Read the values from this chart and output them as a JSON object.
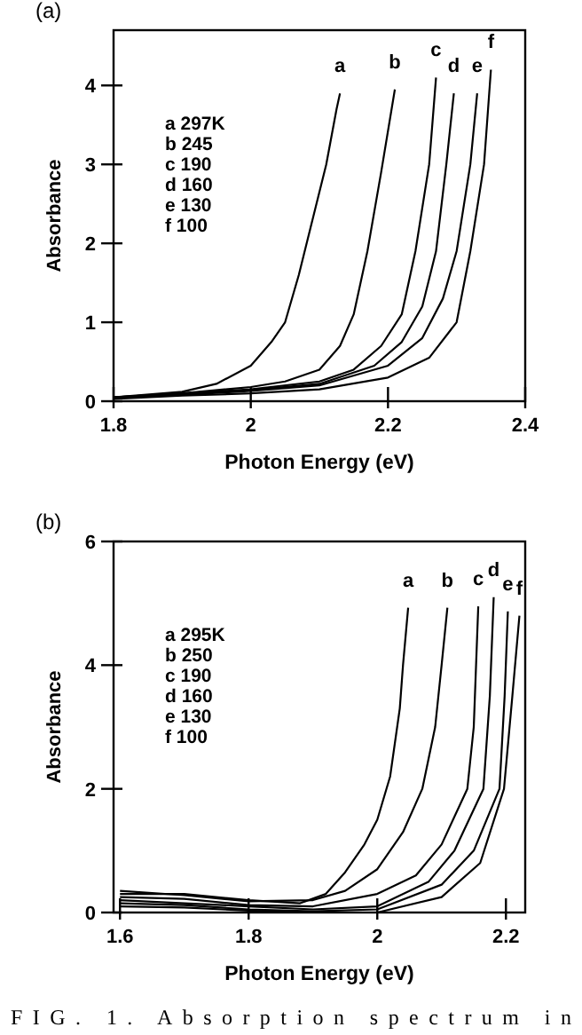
{
  "chart_data": [
    {
      "type": "line",
      "title": "(a)",
      "xlabel": "Photon Energy (eV)",
      "ylabel": "Absorbance",
      "xlim": [
        1.8,
        2.4
      ],
      "xticks": [
        {
          "value": 1.8,
          "label": "1.8"
        },
        {
          "value": 2,
          "label": "2"
        },
        {
          "value": 2.2,
          "label": "2.2"
        },
        {
          "value": 2.4,
          "label": "2.4"
        }
      ],
      "ylim": [
        0,
        4.7
      ],
      "yticks": [
        0,
        1,
        2,
        3,
        4
      ],
      "grid": false,
      "marker": "none",
      "line_style": "solid",
      "annotations": [
        "a 297K",
        "b 245",
        "c 190",
        "d 160",
        "e 130",
        "f 100"
      ],
      "series": [
        {
          "name": "a",
          "color": "#000000",
          "x": [
            1.8,
            1.9,
            1.95,
            2.0,
            2.03,
            2.05,
            2.07,
            2.09,
            2.11,
            2.125,
            2.13
          ],
          "values": [
            0.05,
            0.12,
            0.22,
            0.45,
            0.75,
            1.0,
            1.6,
            2.3,
            3.0,
            3.7,
            3.9
          ]
        },
        {
          "name": "b",
          "color": "#000000",
          "x": [
            1.8,
            1.9,
            2.0,
            2.05,
            2.1,
            2.13,
            2.15,
            2.17,
            2.19,
            2.21
          ],
          "values": [
            0.05,
            0.1,
            0.18,
            0.25,
            0.4,
            0.7,
            1.1,
            1.9,
            2.9,
            3.95
          ]
        },
        {
          "name": "c",
          "color": "#000000",
          "x": [
            1.8,
            1.9,
            2.0,
            2.1,
            2.15,
            2.19,
            2.22,
            2.24,
            2.26,
            2.27
          ],
          "values": [
            0.05,
            0.1,
            0.15,
            0.25,
            0.4,
            0.7,
            1.1,
            1.9,
            3.0,
            4.1
          ]
        },
        {
          "name": "d",
          "color": "#000000",
          "x": [
            1.8,
            1.9,
            2.0,
            2.1,
            2.18,
            2.22,
            2.25,
            2.27,
            2.285,
            2.296
          ],
          "values": [
            0.04,
            0.09,
            0.14,
            0.22,
            0.45,
            0.75,
            1.2,
            1.9,
            3.0,
            3.9
          ]
        },
        {
          "name": "e",
          "color": "#000000",
          "x": [
            1.8,
            1.9,
            2.0,
            2.1,
            2.2,
            2.25,
            2.28,
            2.3,
            2.32,
            2.33
          ],
          "values": [
            0.04,
            0.08,
            0.13,
            0.2,
            0.45,
            0.8,
            1.3,
            1.9,
            3.0,
            3.9
          ]
        },
        {
          "name": "f",
          "color": "#000000",
          "x": [
            1.8,
            1.9,
            2.0,
            2.1,
            2.2,
            2.26,
            2.3,
            2.32,
            2.34,
            2.35
          ],
          "values": [
            0.03,
            0.07,
            0.1,
            0.15,
            0.3,
            0.55,
            1.0,
            1.9,
            3.0,
            4.2
          ]
        }
      ]
    },
    {
      "type": "line",
      "title": "(b)",
      "xlabel": "Photon Energy (eV)",
      "ylabel": "Absorbance",
      "xlim": [
        1.59,
        2.23
      ],
      "xticks": [
        {
          "value": 1.6,
          "label": "1.6"
        },
        {
          "value": 1.8,
          "label": "1.8"
        },
        {
          "value": 2,
          "label": "2"
        },
        {
          "value": 2.2,
          "label": "2.2"
        }
      ],
      "ylim": [
        0,
        6
      ],
      "yticks": [
        0,
        2,
        4,
        6
      ],
      "grid": false,
      "marker": "none",
      "line_style": "solid",
      "annotations": [
        "a 295K",
        "b 250",
        "c 190",
        "d 160",
        "e 130",
        "f 100",
        "FIG. 1. Absorption spectrum in"
      ],
      "series": [
        {
          "name": "a",
          "color": "#000000",
          "x": [
            1.6,
            1.7,
            1.8,
            1.88,
            1.92,
            1.95,
            1.98,
            2.0,
            2.02,
            2.035,
            2.04,
            2.048
          ],
          "values": [
            0.3,
            0.3,
            0.2,
            0.15,
            0.3,
            0.65,
            1.1,
            1.5,
            2.2,
            3.3,
            4.0,
            4.93
          ]
        },
        {
          "name": "b",
          "color": "#000000",
          "x": [
            1.6,
            1.7,
            1.8,
            1.9,
            1.95,
            2.0,
            2.04,
            2.07,
            2.09,
            2.1,
            2.109
          ],
          "values": [
            0.35,
            0.28,
            0.18,
            0.2,
            0.35,
            0.7,
            1.3,
            2.0,
            3.0,
            4.0,
            4.93
          ]
        },
        {
          "name": "c",
          "color": "#000000",
          "x": [
            1.6,
            1.7,
            1.8,
            1.9,
            2.0,
            2.06,
            2.1,
            2.14,
            2.15,
            2.157
          ],
          "values": [
            0.25,
            0.22,
            0.12,
            0.1,
            0.3,
            0.6,
            1.1,
            2.0,
            3.0,
            4.95
          ]
        },
        {
          "name": "d",
          "color": "#000000",
          "x": [
            1.6,
            1.7,
            1.8,
            1.9,
            2.0,
            2.08,
            2.12,
            2.165,
            2.175,
            2.181
          ],
          "values": [
            0.2,
            0.15,
            0.1,
            0.05,
            0.1,
            0.5,
            1.0,
            2.0,
            3.5,
            5.1
          ]
        },
        {
          "name": "e",
          "color": "#000000",
          "x": [
            1.6,
            1.7,
            1.8,
            1.9,
            2.0,
            2.1,
            2.15,
            2.19,
            2.198,
            2.203
          ],
          "values": [
            0.15,
            0.12,
            0.05,
            0.02,
            0.05,
            0.45,
            1.0,
            2.0,
            3.5,
            4.87
          ]
        },
        {
          "name": "f",
          "color": "#000000",
          "x": [
            1.6,
            1.7,
            1.8,
            1.9,
            2.0,
            2.1,
            2.16,
            2.197,
            2.21,
            2.221
          ],
          "values": [
            0.1,
            0.08,
            0.03,
            0.0,
            0.0,
            0.25,
            0.8,
            2.0,
            3.5,
            4.8
          ]
        }
      ]
    }
  ]
}
